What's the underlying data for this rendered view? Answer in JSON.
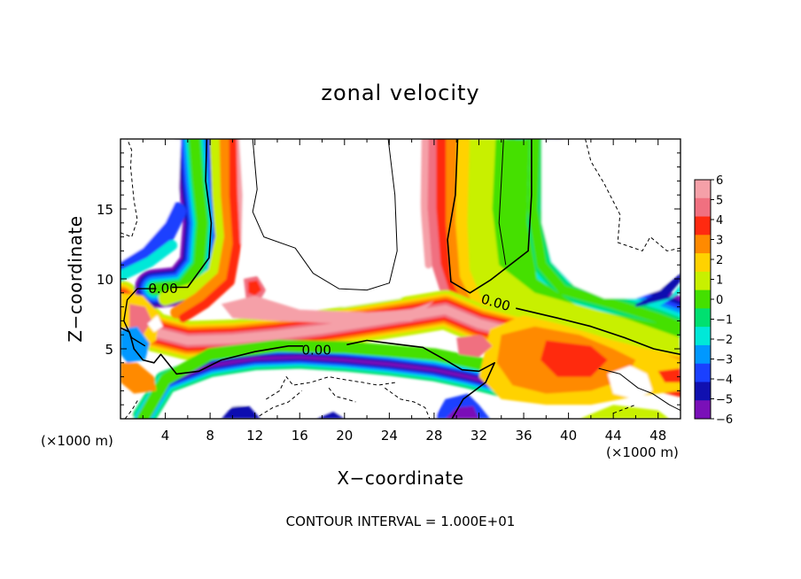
{
  "chart_data": {
    "type": "heatmap",
    "title": "zonal velocity",
    "xlabel": "X−coordinate",
    "ylabel": "Z−coordinate",
    "x_unit_label": "(×1000 m)",
    "y_unit_label": "(×1000 m)",
    "xlim": [
      0,
      50
    ],
    "ylim": [
      0,
      20
    ],
    "x_ticks": [
      4,
      8,
      12,
      16,
      20,
      24,
      28,
      32,
      36,
      40,
      44,
      48
    ],
    "x_tick_labels": [
      "4",
      "8",
      "12",
      "16",
      "20",
      "24",
      "28",
      "32",
      "36",
      "40",
      "44",
      "48"
    ],
    "y_ticks": [
      5,
      10,
      15
    ],
    "y_tick_labels": [
      "5",
      "10",
      "15"
    ],
    "footer": "CONTOUR INTERVAL = 1.000E+01",
    "colorbar": {
      "levels": [
        6,
        5,
        4,
        3,
        2,
        1,
        0,
        -1,
        -2,
        -3,
        -4,
        -5,
        -6
      ],
      "labels": [
        "6",
        "5",
        "4",
        "3",
        "2",
        "1",
        "0",
        "−1",
        "−2",
        "−3",
        "−4",
        "−5",
        "−6"
      ],
      "colors": [
        "#f5a0a8",
        "#f07080",
        "#ff2a10",
        "#ff8a00",
        "#ffd200",
        "#c8f000",
        "#44e000",
        "#00e070",
        "#00e8d8",
        "#0098ff",
        "#1a40ff",
        "#1010b0",
        "#7a10b8"
      ]
    },
    "contour_labels": [
      {
        "x": 3.8,
        "y": 9.3,
        "text": "0.00"
      },
      {
        "x": 17.5,
        "y": 4.9,
        "text": "0.00"
      },
      {
        "x": 33.5,
        "y": 8.3,
        "text": "0.00"
      }
    ]
  }
}
